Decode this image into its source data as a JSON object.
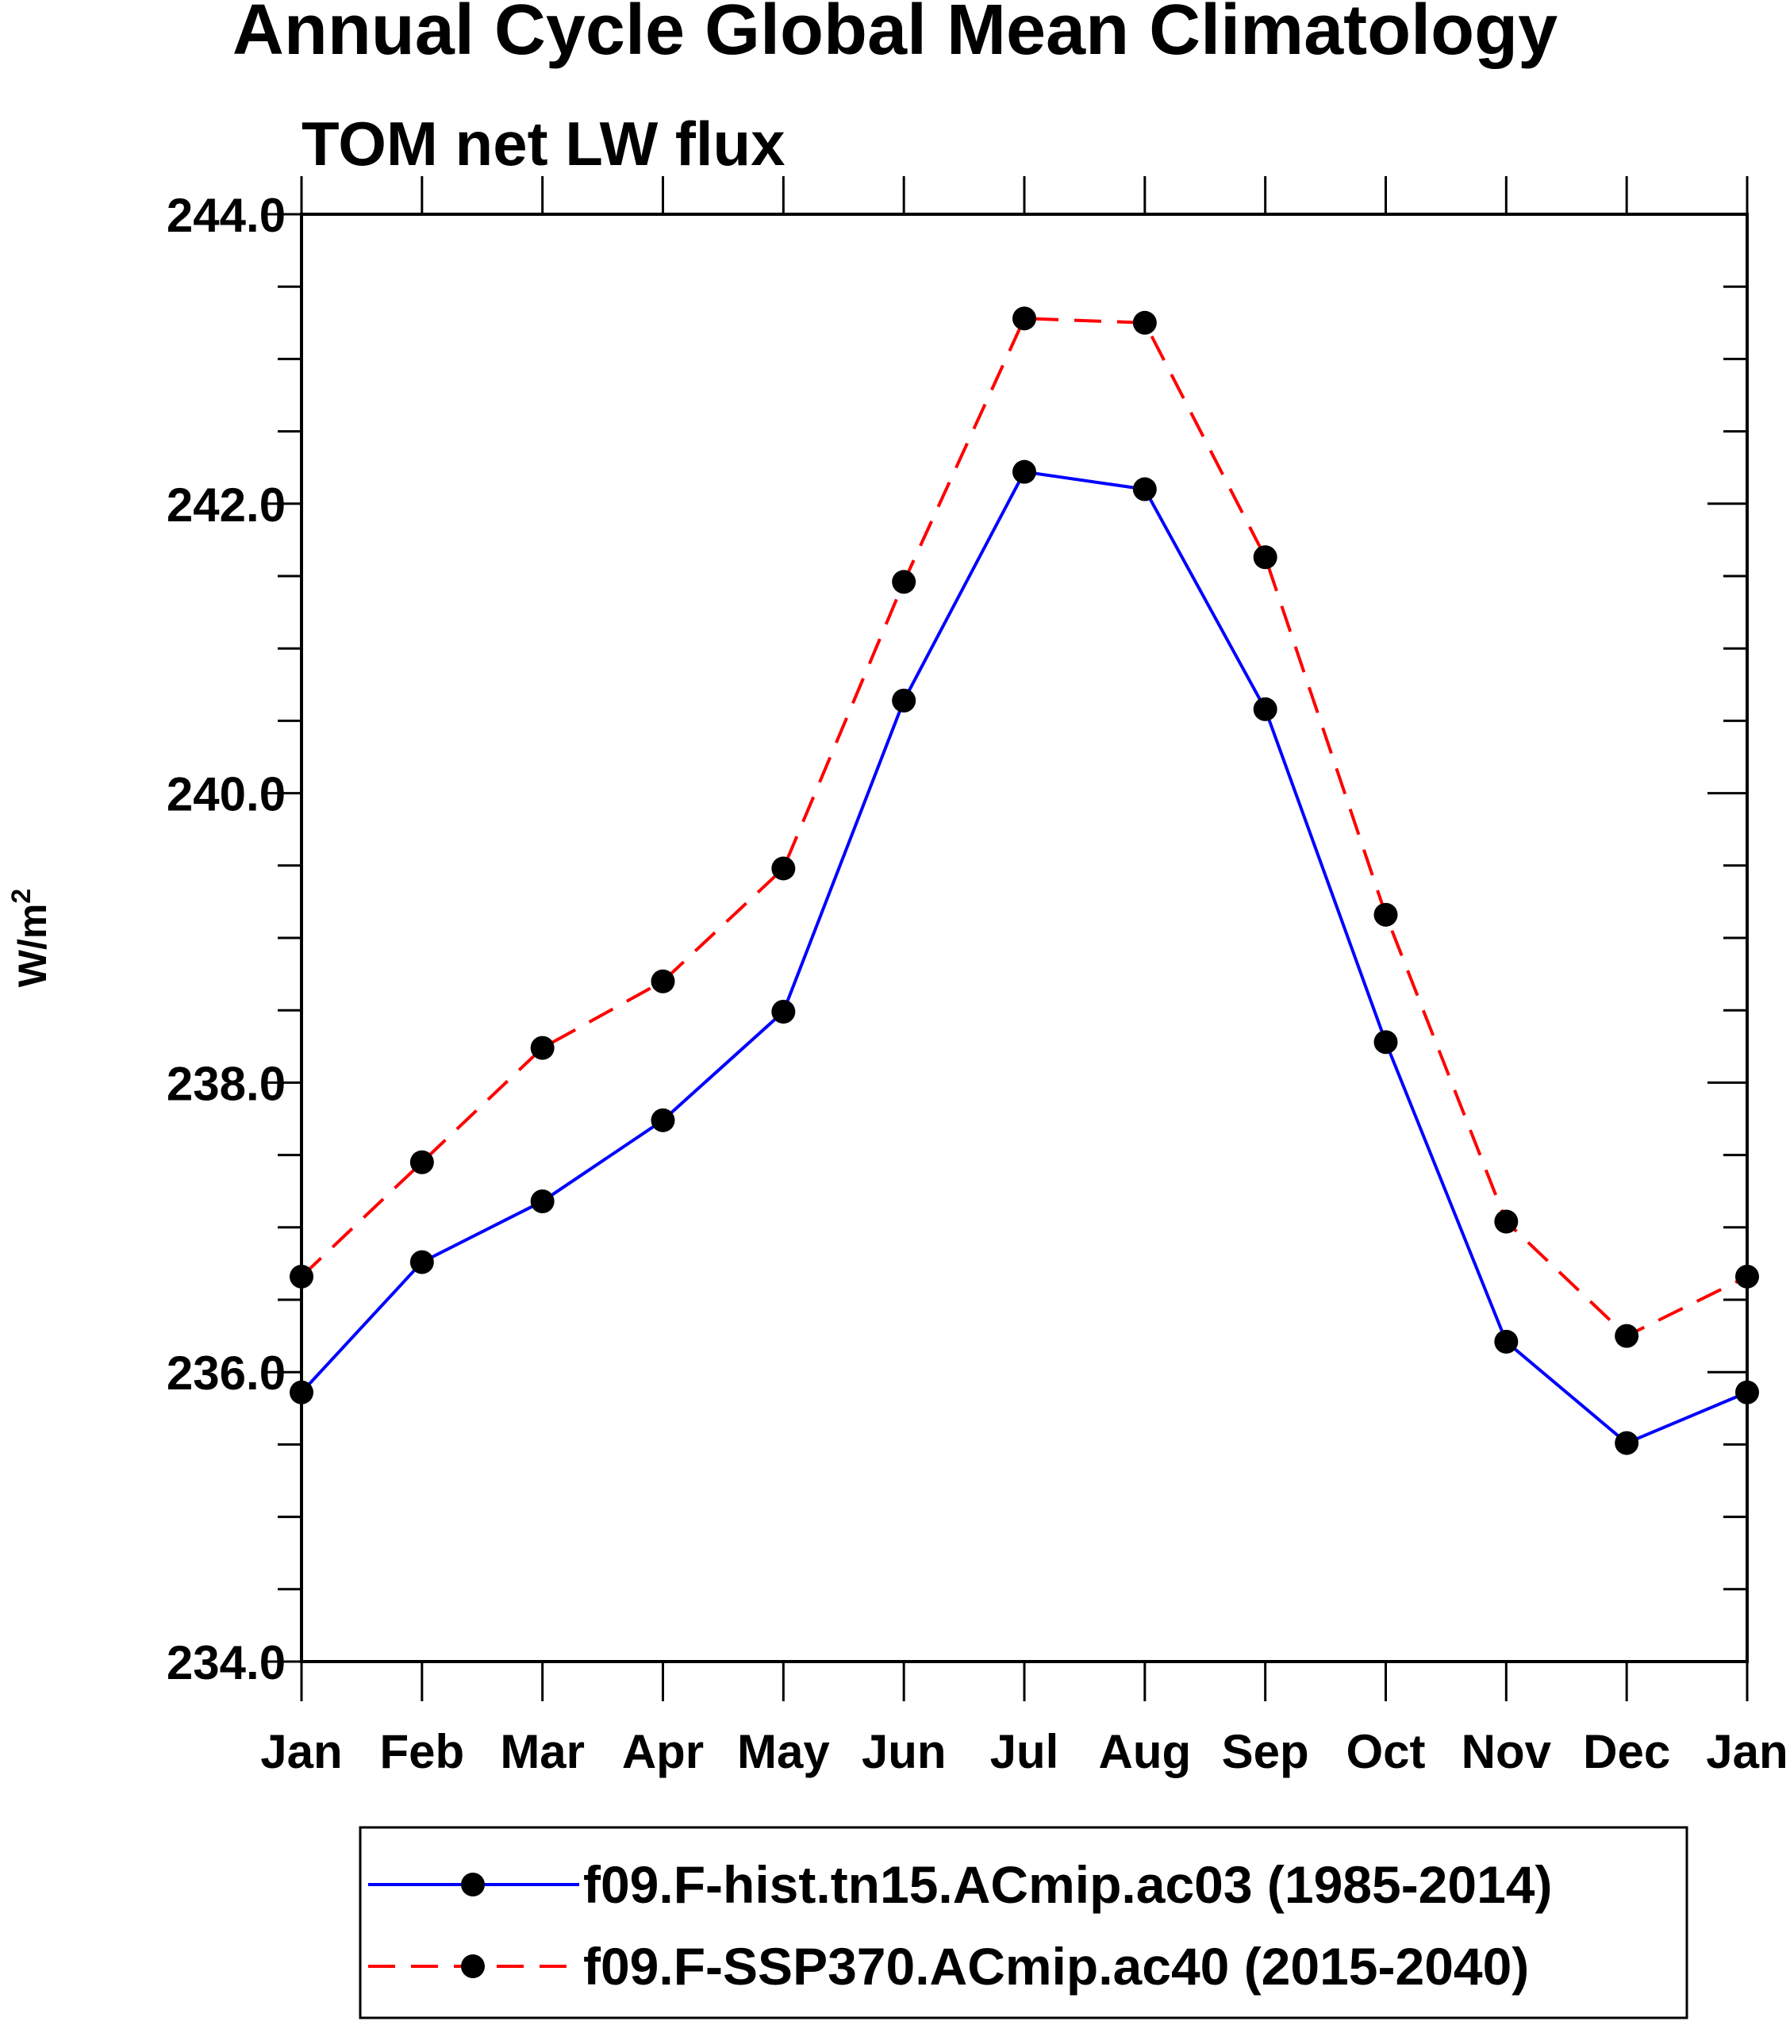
{
  "chart_data": {
    "type": "line",
    "title": "Annual Cycle Global Mean Climatology",
    "subtitle": "TOM net LW flux",
    "ylabel": "W/m",
    "ylabel_superscript": "2",
    "xlabel": "",
    "ylim": [
      234.0,
      244.0
    ],
    "yticks": [
      "234.0",
      "236.0",
      "238.0",
      "240.0",
      "242.0",
      "244.0"
    ],
    "categories": [
      "Jan",
      "Feb",
      "Mar",
      "Apr",
      "May",
      "Jun",
      "Jul",
      "Aug",
      "Sep",
      "Oct",
      "Nov",
      "Dec",
      "Jan"
    ],
    "series": [
      {
        "name": "f09.F-hist.tn15.ACmip.ac03 (1985-2014)",
        "color": "#0000ff",
        "dash": "solid",
        "marker": "dot",
        "values": [
          235.86,
          236.76,
          237.18,
          237.74,
          238.49,
          240.64,
          242.22,
          242.1,
          240.58,
          238.28,
          236.21,
          235.51,
          235.86
        ]
      },
      {
        "name": "f09.F-SSP370.ACmip.ac40 (2015-2040)",
        "color": "#ff0000",
        "dash": "dashed",
        "marker": "dot",
        "values": [
          236.66,
          237.45,
          238.24,
          238.7,
          239.48,
          241.46,
          243.28,
          243.25,
          241.63,
          239.16,
          237.04,
          236.25,
          236.66
        ]
      }
    ],
    "legend_position": "bottom"
  }
}
